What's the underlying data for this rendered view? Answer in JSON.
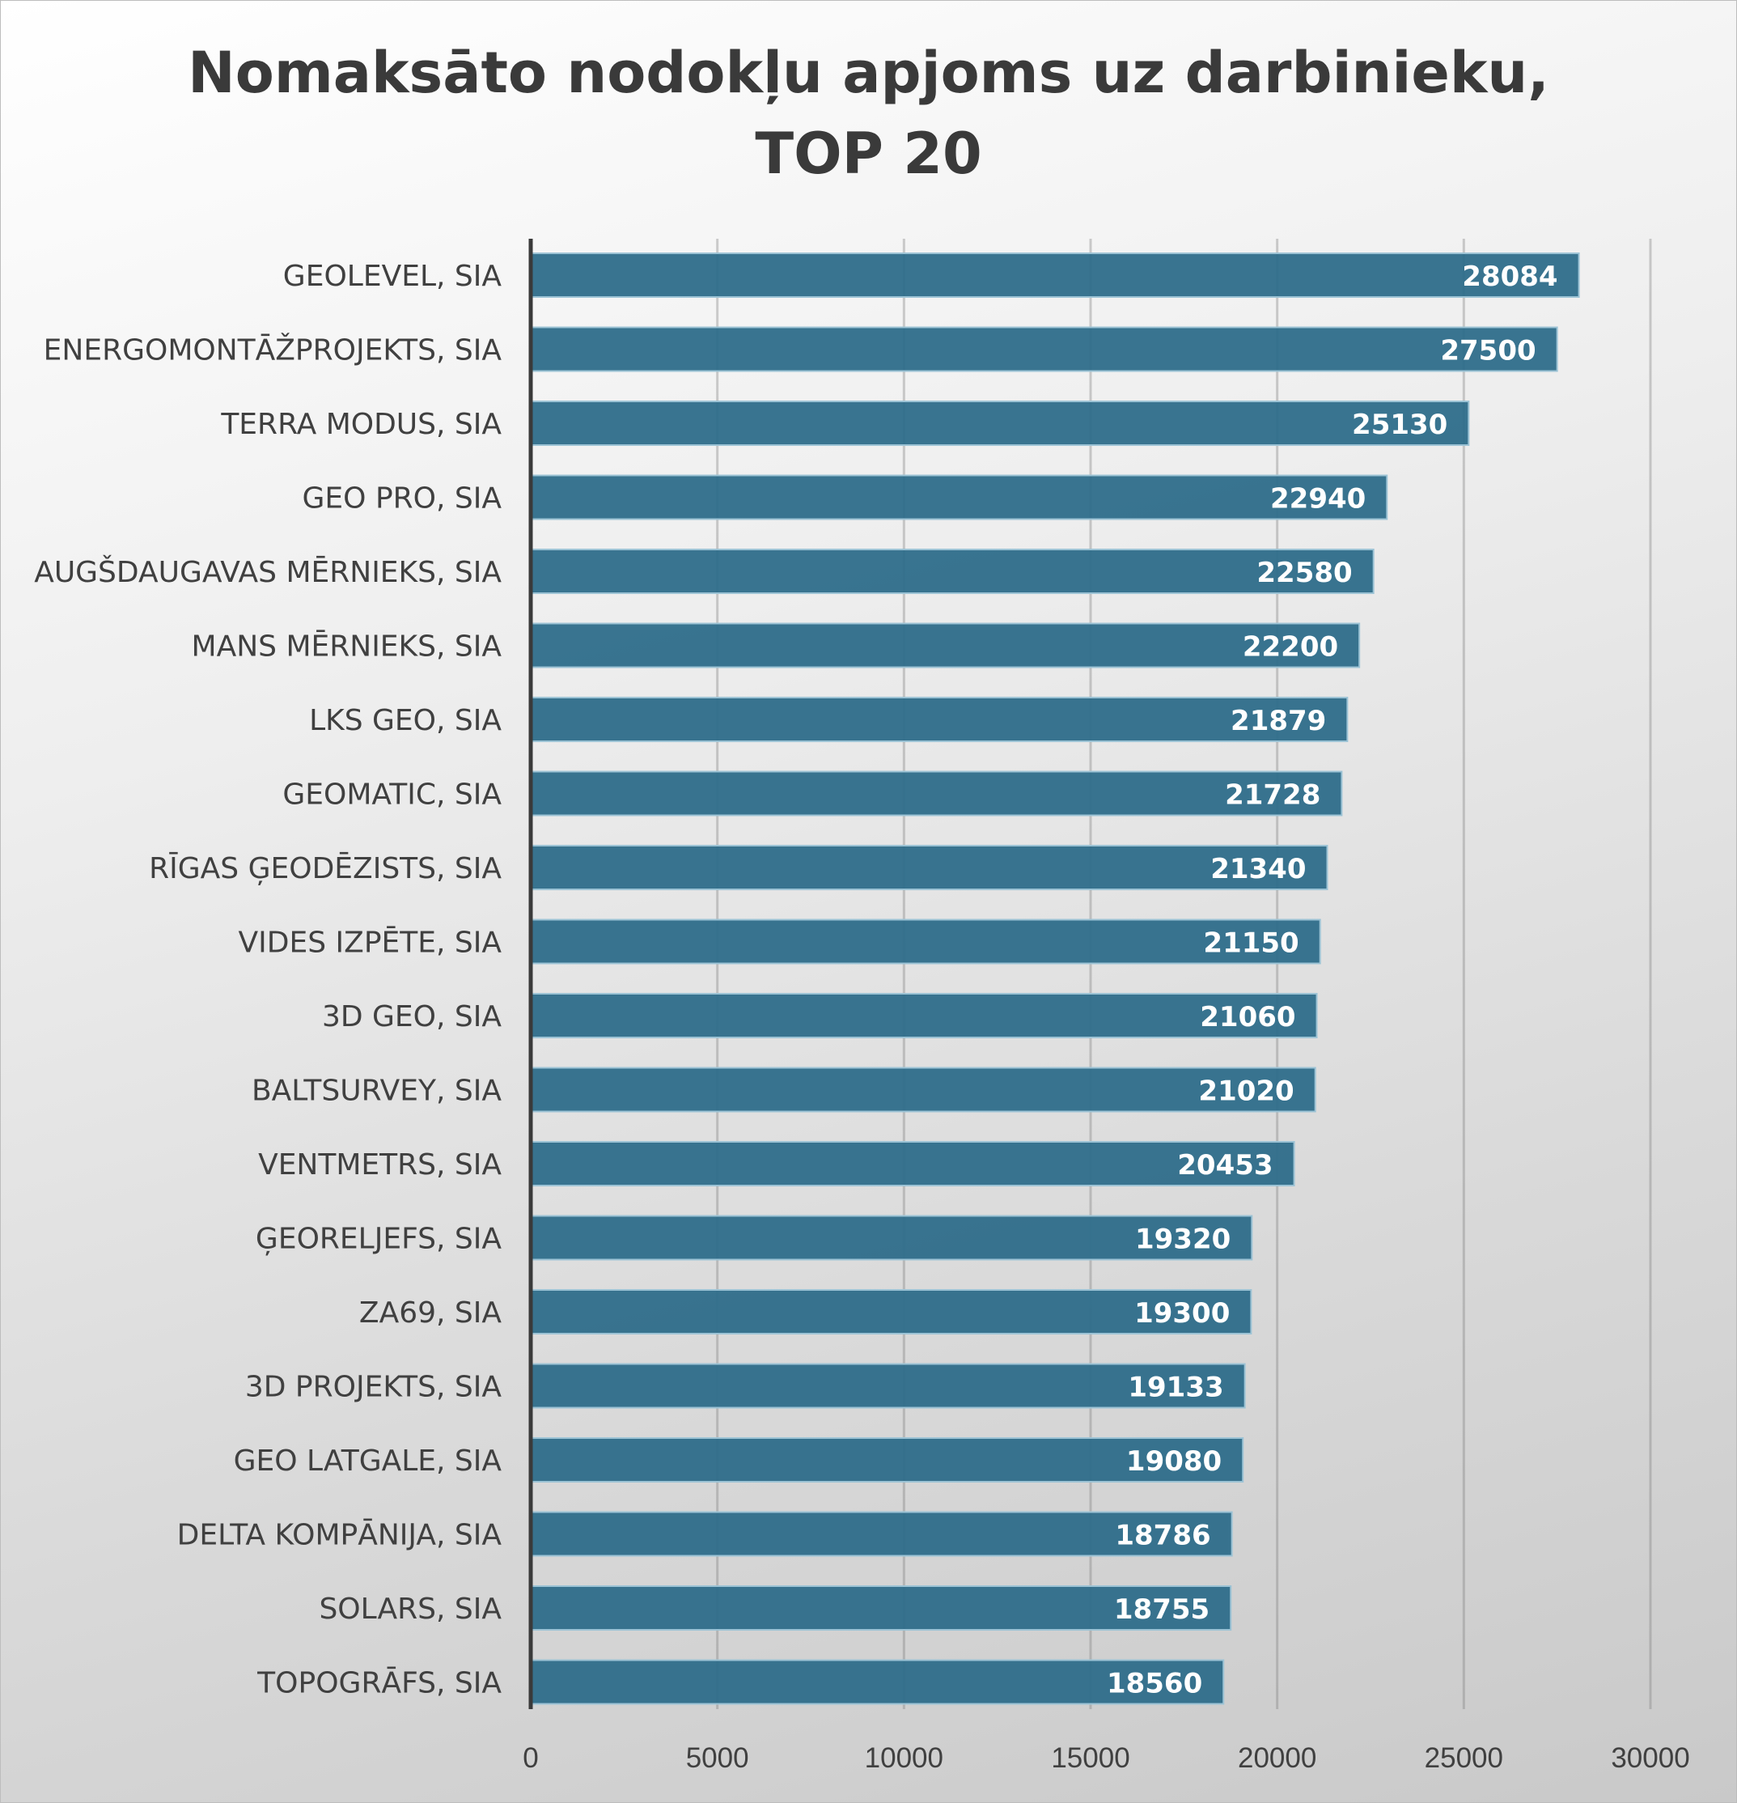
{
  "chart_data": {
    "type": "bar",
    "orientation": "horizontal",
    "title_lines": [
      "Nomaksāto nodokļu apjoms uz darbinieku,",
      "TOP 20"
    ],
    "categories": [
      "GEOLEVEL, SIA",
      "ENERGOMONTĀŽPROJEKTS, SIA",
      "TERRA MODUS, SIA",
      "GEO PRO, SIA",
      "AUGŠDAUGAVAS MĒRNIEKS, SIA",
      "MANS MĒRNIEKS, SIA",
      "LKS GEO, SIA",
      "GEOMATIC, SIA",
      "RĪGAS ĢEODĒZISTS, SIA",
      "VIDES IZPĒTE, SIA",
      "3D GEO, SIA",
      "BALTSURVEY, SIA",
      "VENTMETRS, SIA",
      "ĢEORELJEFS, SIA",
      "ZA69, SIA",
      "3D PROJEKTS, SIA",
      "GEO LATGALE, SIA",
      "DELTA KOMPĀNIJA, SIA ",
      "SOLARS, SIA",
      "TOPOGRĀFS, SIA"
    ],
    "values": [
      28084,
      27500,
      25130,
      22940,
      22580,
      22200,
      21879,
      21728,
      21340,
      21150,
      21060,
      21020,
      20453,
      19320,
      19300,
      19133,
      19080,
      18786,
      18755,
      18560
    ],
    "xlim": [
      0,
      30000
    ],
    "xticks": [
      "0",
      "5000",
      "10000",
      "15000",
      "20000",
      "25000",
      "30000"
    ],
    "grid": true,
    "bar_color": "#2e6d8a",
    "label_color": "#ffffff"
  }
}
